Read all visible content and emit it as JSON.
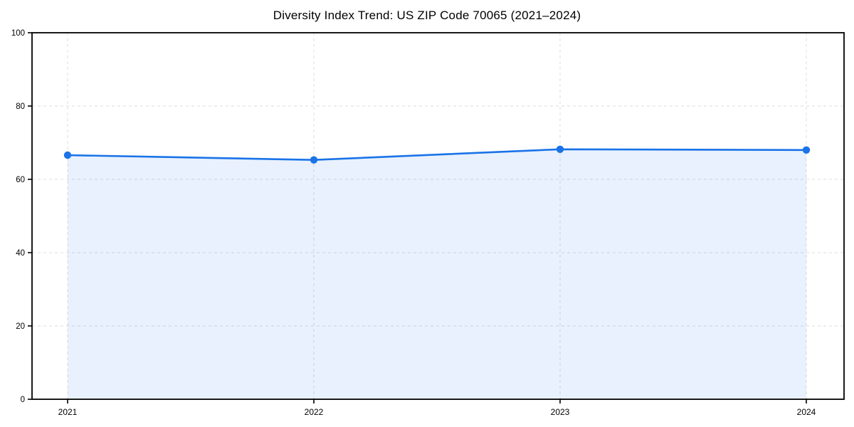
{
  "chart_data": {
    "type": "area",
    "title": "Diversity Index Trend: US ZIP Code 70065 (2021–2024)",
    "x": [
      "2021",
      "2022",
      "2023",
      "2024"
    ],
    "series": [
      {
        "name": "Diversity Index",
        "values": [
          66.6,
          65.3,
          68.2,
          68.0
        ]
      }
    ],
    "xlabel": "",
    "ylabel": "",
    "ylim": [
      0,
      100
    ],
    "yticks": [
      0,
      20,
      40,
      60,
      80,
      100
    ],
    "grid": true,
    "grid_style": "dashed",
    "legend_position": "none",
    "colors": {
      "line": "#1a73e8",
      "marker": "#1a73e8",
      "fill": "#1a73e8",
      "fill_opacity": "0.10",
      "grid": "#dcdcdc",
      "axis": "#000000",
      "text": "#000000",
      "background": "#ffffff"
    }
  }
}
